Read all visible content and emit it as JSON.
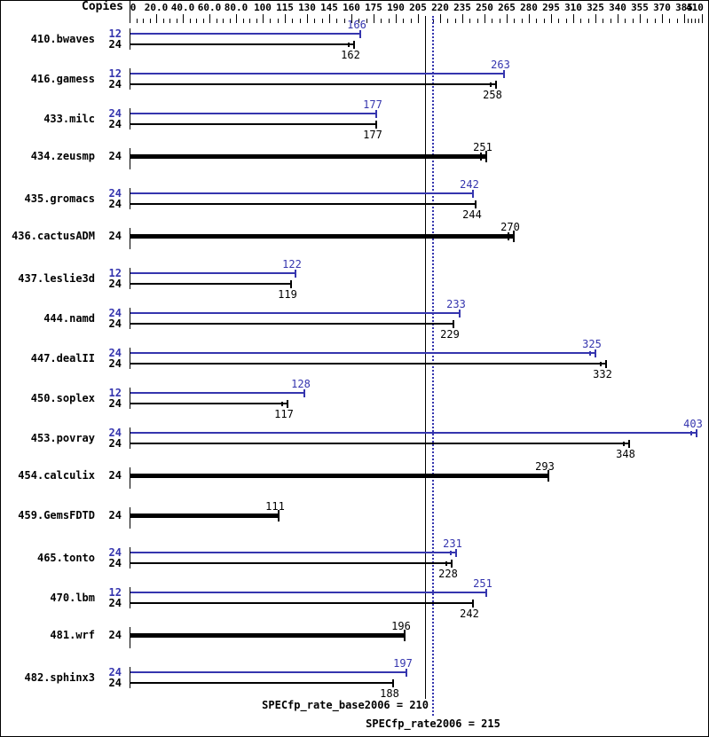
{
  "header": {
    "copies_label": "Copies"
  },
  "colors": {
    "peak_blue": "#3535ae",
    "base_black": "#000000"
  },
  "axis": {
    "majors": [
      {
        "value": 0,
        "label": "0"
      },
      {
        "value": 20,
        "label": "20.0"
      },
      {
        "value": 40,
        "label": "40.0"
      },
      {
        "value": 60,
        "label": "60.0"
      },
      {
        "value": 80,
        "label": "80.0"
      },
      {
        "value": 100,
        "label": "100"
      },
      {
        "value": 115,
        "label": "115"
      },
      {
        "value": 130,
        "label": "130"
      },
      {
        "value": 145,
        "label": "145"
      },
      {
        "value": 160,
        "label": "160"
      },
      {
        "value": 175,
        "label": "175"
      },
      {
        "value": 190,
        "label": "190"
      },
      {
        "value": 205,
        "label": "205"
      },
      {
        "value": 220,
        "label": "220"
      },
      {
        "value": 235,
        "label": "235"
      },
      {
        "value": 250,
        "label": "250"
      },
      {
        "value": 265,
        "label": "265"
      },
      {
        "value": 280,
        "label": "280"
      },
      {
        "value": 295,
        "label": "295"
      },
      {
        "value": 310,
        "label": "310"
      },
      {
        "value": 325,
        "label": "325"
      },
      {
        "value": 340,
        "label": "340"
      },
      {
        "value": 355,
        "label": "355"
      },
      {
        "value": 370,
        "label": "370"
      },
      {
        "value": 385,
        "label": "385"
      },
      {
        "value": 410,
        "label": "410"
      }
    ],
    "minor_step": 5
  },
  "benchmarks": [
    {
      "name": "410.bwaves",
      "bars": [
        {
          "copies": "12",
          "role": "peak",
          "value": 166,
          "label": "166"
        },
        {
          "copies": "24",
          "role": "base",
          "value": 162,
          "label": "162",
          "whisker": true
        }
      ]
    },
    {
      "name": "416.gamess",
      "bars": [
        {
          "copies": "12",
          "role": "peak",
          "value": 263,
          "label": "263"
        },
        {
          "copies": "24",
          "role": "base",
          "value": 258,
          "label": "258",
          "whisker": true
        }
      ]
    },
    {
      "name": "433.milc",
      "bars": [
        {
          "copies": "24",
          "role": "peak",
          "value": 177,
          "label": "177"
        },
        {
          "copies": "24",
          "role": "base",
          "value": 177,
          "label": "177"
        }
      ]
    },
    {
      "name": "434.zeusmp",
      "bars": [
        {
          "copies": "24",
          "role": "base",
          "value": 251,
          "label": "251",
          "thick": true,
          "whisker": true
        }
      ]
    },
    {
      "name": "435.gromacs",
      "bars": [
        {
          "copies": "24",
          "role": "peak",
          "value": 242,
          "label": "242"
        },
        {
          "copies": "24",
          "role": "base",
          "value": 244,
          "label": "244"
        }
      ]
    },
    {
      "name": "436.cactusADM",
      "bars": [
        {
          "copies": "24",
          "role": "base",
          "value": 270,
          "label": "270",
          "thick": true,
          "whisker": true
        }
      ]
    },
    {
      "name": "437.leslie3d",
      "bars": [
        {
          "copies": "12",
          "role": "peak",
          "value": 122,
          "label": "122"
        },
        {
          "copies": "24",
          "role": "base",
          "value": 119,
          "label": "119"
        }
      ]
    },
    {
      "name": "444.namd",
      "bars": [
        {
          "copies": "24",
          "role": "peak",
          "value": 233,
          "label": "233"
        },
        {
          "copies": "24",
          "role": "base",
          "value": 229,
          "label": "229"
        }
      ]
    },
    {
      "name": "447.dealII",
      "bars": [
        {
          "copies": "24",
          "role": "peak",
          "value": 325,
          "label": "325",
          "whisker": true
        },
        {
          "copies": "24",
          "role": "base",
          "value": 332,
          "label": "332",
          "whisker": true
        }
      ]
    },
    {
      "name": "450.soplex",
      "bars": [
        {
          "copies": "12",
          "role": "peak",
          "value": 128,
          "label": "128"
        },
        {
          "copies": "24",
          "role": "base",
          "value": 117,
          "label": "117",
          "whisker": true
        }
      ]
    },
    {
      "name": "453.povray",
      "bars": [
        {
          "copies": "24",
          "role": "peak",
          "value": 403,
          "label": "403",
          "whisker": true
        },
        {
          "copies": "24",
          "role": "base",
          "value": 348,
          "label": "348",
          "whisker": true
        }
      ]
    },
    {
      "name": "454.calculix",
      "bars": [
        {
          "copies": "24",
          "role": "base",
          "value": 293,
          "label": "293",
          "thick": true
        }
      ]
    },
    {
      "name": "459.GemsFDTD",
      "bars": [
        {
          "copies": "24",
          "role": "base",
          "value": 111,
          "label": "111",
          "thick": true
        }
      ]
    },
    {
      "name": "465.tonto",
      "bars": [
        {
          "copies": "24",
          "role": "peak",
          "value": 231,
          "label": "231",
          "whisker": true
        },
        {
          "copies": "24",
          "role": "base",
          "value": 228,
          "label": "228",
          "whisker": true
        }
      ]
    },
    {
      "name": "470.lbm",
      "bars": [
        {
          "copies": "12",
          "role": "peak",
          "value": 251,
          "label": "251"
        },
        {
          "copies": "24",
          "role": "base",
          "value": 242,
          "label": "242"
        }
      ]
    },
    {
      "name": "481.wrf",
      "bars": [
        {
          "copies": "24",
          "role": "base",
          "value": 196,
          "label": "196",
          "thick": true
        }
      ]
    },
    {
      "name": "482.sphinx3",
      "bars": [
        {
          "copies": "24",
          "role": "peak",
          "value": 197,
          "label": "197"
        },
        {
          "copies": "24",
          "role": "base",
          "value": 188,
          "label": "188"
        }
      ]
    }
  ],
  "reference_lines": [
    {
      "text": "SPECfp_rate_base2006 = 210",
      "value": 210,
      "style": "solid",
      "color": "#000000"
    },
    {
      "text": "SPECfp_rate2006 = 215",
      "value": 215,
      "style": "dotted",
      "color": "#3535ae"
    }
  ],
  "chart_data": {
    "type": "bar",
    "orientation": "horizontal",
    "title": "",
    "xlabel": "",
    "ylabel": "Copies",
    "categories": [
      "410.bwaves",
      "416.gamess",
      "433.milc",
      "434.zeusmp",
      "435.gromacs",
      "436.cactusADM",
      "437.leslie3d",
      "444.namd",
      "447.dealII",
      "450.soplex",
      "453.povray",
      "454.calculix",
      "459.GemsFDTD",
      "465.tonto",
      "470.lbm",
      "481.wrf",
      "482.sphinx3"
    ],
    "series": [
      {
        "name": "peak (SPECfp_rate2006)",
        "color": "#3535ae",
        "copies": [
          12,
          12,
          24,
          null,
          24,
          null,
          12,
          24,
          24,
          12,
          24,
          null,
          null,
          24,
          12,
          null,
          24
        ],
        "values": [
          166,
          263,
          177,
          null,
          242,
          null,
          122,
          233,
          325,
          128,
          403,
          null,
          null,
          231,
          251,
          null,
          197
        ]
      },
      {
        "name": "base (SPECfp_rate_base2006)",
        "color": "#000000",
        "copies": [
          24,
          24,
          24,
          24,
          24,
          24,
          24,
          24,
          24,
          24,
          24,
          24,
          24,
          24,
          24,
          24,
          24
        ],
        "values": [
          162,
          258,
          177,
          251,
          244,
          270,
          119,
          229,
          332,
          117,
          348,
          293,
          111,
          228,
          242,
          196,
          188
        ]
      }
    ],
    "summary": {
      "SPECfp_rate_base2006": 210,
      "SPECfp_rate2006": 215
    },
    "xaxis": {
      "tick_labels": [
        "0",
        "20.0",
        "40.0",
        "60.0",
        "80.0",
        "100",
        "115",
        "130",
        "145",
        "160",
        "175",
        "190",
        "205",
        "220",
        "235",
        "250",
        "265",
        "280",
        "295",
        "310",
        "325",
        "340",
        "355",
        "370",
        "385",
        "410"
      ],
      "nonlinear_scale": true,
      "range": [
        0,
        410
      ]
    },
    "grid": false,
    "legend_position": "none"
  }
}
